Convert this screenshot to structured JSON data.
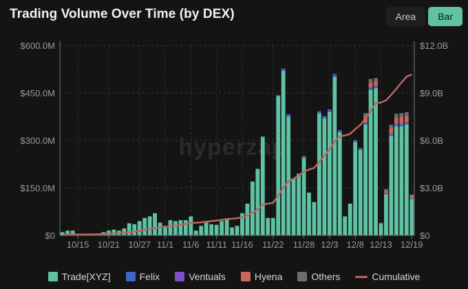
{
  "header": {
    "title": "Trading Volume Over Time (by DEX)"
  },
  "toggle": {
    "area_label": "Area",
    "bar_label": "Bar",
    "active": "Bar"
  },
  "watermark": "hyperzap",
  "colors": {
    "trade_xyz": "#5fc2a4",
    "felix": "#3f66c6",
    "ventuals": "#7b4fc9",
    "hyena": "#c9655c",
    "others": "#6d6d6d",
    "cumulative": "#b9675f"
  },
  "chart_data": {
    "type": "bar",
    "title": "Trading Volume Over Time (by DEX)",
    "y_left": {
      "ticks": [
        "$0",
        "$150.0M",
        "$300.0M",
        "$450.0M",
        "$600.0M"
      ],
      "lim": [
        0,
        600
      ]
    },
    "y_right": {
      "ticks": [
        "$0",
        "$3.0B",
        "$6.0B",
        "$9.0B",
        "$12.0B"
      ],
      "lim": [
        0,
        12
      ]
    },
    "x_tick_labels": [
      "10/15",
      "10/21",
      "10/27",
      "11/1",
      "11/6",
      "11/11",
      "11/16",
      "11/22",
      "11/28",
      "12/3",
      "12/8",
      "12/13",
      "12/19"
    ],
    "x_tick_indices": [
      3,
      9,
      15,
      20,
      25,
      30,
      35,
      41,
      47,
      52,
      57,
      62,
      68
    ],
    "legend": [
      "Trade[XYZ]",
      "Felix",
      "Ventuals",
      "Hyena",
      "Others",
      "Cumulative"
    ],
    "series": [
      {
        "name": "Trade[XYZ]",
        "values": [
          10,
          15,
          15,
          5,
          3,
          5,
          5,
          5,
          10,
          15,
          18,
          15,
          22,
          38,
          35,
          45,
          55,
          60,
          70,
          40,
          30,
          48,
          45,
          48,
          48,
          60,
          15,
          30,
          40,
          35,
          33,
          45,
          50,
          25,
          30,
          70,
          100,
          170,
          210,
          310,
          55,
          55,
          440,
          520,
          375,
          180,
          195,
          245,
          135,
          105,
          385,
          370,
          390,
          500,
          325,
          60,
          100,
          295,
          270,
          350,
          460,
          465,
          35,
          130,
          315,
          345,
          345,
          350,
          115
        ]
      },
      {
        "name": "Felix",
        "values": [
          0,
          0,
          0,
          0,
          0,
          0,
          0,
          0,
          0,
          0,
          0,
          0,
          0,
          0,
          0,
          0,
          0,
          0,
          0,
          0,
          0,
          0,
          0,
          0,
          0,
          0,
          0,
          0,
          0,
          0,
          0,
          0,
          0,
          0,
          0,
          0,
          0,
          0,
          0,
          3,
          0,
          0,
          3,
          5,
          6,
          0,
          0,
          4,
          0,
          0,
          5,
          5,
          6,
          8,
          5,
          0,
          0,
          4,
          4,
          4,
          5,
          5,
          0,
          2,
          4,
          5,
          5,
          5,
          2
        ]
      },
      {
        "name": "Ventuals",
        "values": [
          0,
          0,
          0,
          0,
          0,
          0,
          0,
          0,
          0,
          0,
          0,
          0,
          0,
          0,
          0,
          0,
          0,
          0,
          0,
          0,
          0,
          0,
          0,
          0,
          0,
          0,
          0,
          0,
          0,
          0,
          0,
          0,
          0,
          0,
          0,
          0,
          0,
          0,
          0,
          0,
          0,
          0,
          0,
          2,
          2,
          0,
          0,
          2,
          0,
          0,
          2,
          2,
          2,
          2,
          2,
          0,
          0,
          2,
          2,
          2,
          2,
          2,
          0,
          1,
          2,
          2,
          2,
          2,
          0
        ]
      },
      {
        "name": "Hyena",
        "values": [
          0,
          0,
          0,
          0,
          0,
          0,
          0,
          0,
          0,
          0,
          0,
          0,
          0,
          0,
          0,
          0,
          0,
          0,
          0,
          0,
          0,
          0,
          0,
          0,
          0,
          0,
          0,
          0,
          0,
          0,
          0,
          0,
          0,
          0,
          0,
          0,
          0,
          0,
          0,
          0,
          0,
          0,
          0,
          0,
          0,
          0,
          0,
          0,
          0,
          0,
          0,
          0,
          0,
          0,
          0,
          0,
          0,
          0,
          0,
          20,
          15,
          15,
          3,
          8,
          18,
          20,
          22,
          20,
          8
        ]
      },
      {
        "name": "Others",
        "values": [
          0,
          0,
          0,
          0,
          0,
          0,
          0,
          0,
          0,
          0,
          0,
          0,
          0,
          0,
          0,
          0,
          0,
          0,
          0,
          0,
          0,
          0,
          0,
          0,
          0,
          0,
          0,
          0,
          0,
          0,
          0,
          0,
          0,
          0,
          0,
          0,
          0,
          0,
          0,
          0,
          0,
          0,
          0,
          0,
          0,
          0,
          0,
          0,
          0,
          0,
          0,
          0,
          0,
          0,
          0,
          0,
          0,
          0,
          0,
          10,
          12,
          10,
          2,
          5,
          10,
          12,
          12,
          12,
          4
        ]
      }
    ],
    "cumulative_billions": [
      0.01,
      0.03,
      0.04,
      0.05,
      0.05,
      0.06,
      0.06,
      0.07,
      0.08,
      0.1,
      0.12,
      0.14,
      0.16,
      0.2,
      0.23,
      0.28,
      0.33,
      0.39,
      0.46,
      0.5,
      0.53,
      0.58,
      0.62,
      0.67,
      0.72,
      0.78,
      0.79,
      0.82,
      0.86,
      0.9,
      0.93,
      0.98,
      1.03,
      1.05,
      1.08,
      1.15,
      1.25,
      1.42,
      1.63,
      1.94,
      2.0,
      2.05,
      2.5,
      3.02,
      3.4,
      3.58,
      3.78,
      4.02,
      4.16,
      4.26,
      4.65,
      5.02,
      5.42,
      5.92,
      6.25,
      6.31,
      6.41,
      6.71,
      6.98,
      7.37,
      7.86,
      8.35,
      8.39,
      8.53,
      8.88,
      9.26,
      9.65,
      10.03,
      10.16
    ],
    "cumulative_label": "Cumulative"
  }
}
